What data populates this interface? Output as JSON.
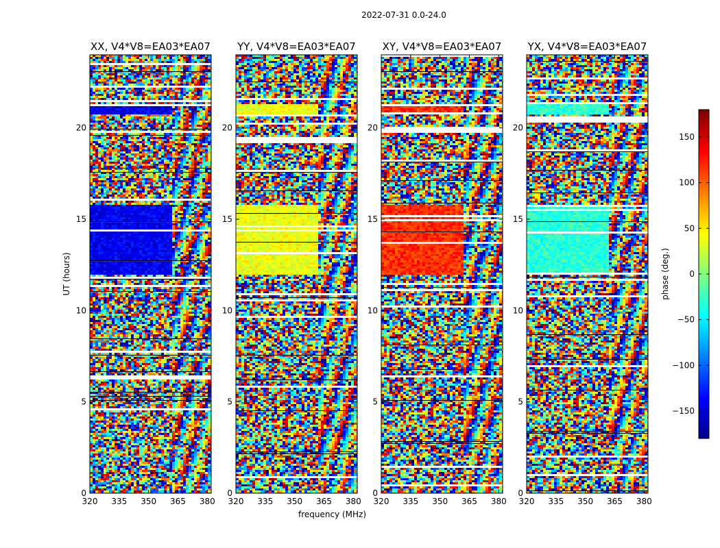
{
  "figure": {
    "suptitle": "2022-07-31 0.0-24.0"
  },
  "chart_data": [
    {
      "type": "heatmap",
      "title": "XX, V4*V8=EA03*EA07",
      "ylabel": "UT (hours)",
      "xlabel": "",
      "xlim": [
        320,
        382
      ],
      "ylim": [
        0,
        24
      ],
      "xticks": [
        320,
        335,
        350,
        365,
        380
      ],
      "yticks": [
        0,
        5,
        10,
        15,
        20
      ],
      "value_label": "phase (deg.)",
      "bias": -140
    },
    {
      "type": "heatmap",
      "title": "YY, V4*V8=EA03*EA07",
      "ylabel": "",
      "xlabel": "frequency (MHz)",
      "xlim": [
        320,
        382
      ],
      "ylim": [
        0,
        24
      ],
      "xticks": [
        320,
        335,
        350,
        365,
        380
      ],
      "yticks": [
        0,
        5,
        10,
        15,
        20
      ],
      "value_label": "phase (deg.)",
      "bias": 40
    },
    {
      "type": "heatmap",
      "title": "XY, V4*V8=EA03*EA07",
      "ylabel": "",
      "xlabel": "",
      "xlim": [
        320,
        382
      ],
      "ylim": [
        0,
        24
      ],
      "xticks": [
        320,
        335,
        350,
        365,
        380
      ],
      "yticks": [
        0,
        5,
        10,
        15,
        20
      ],
      "value_label": "phase (deg.)",
      "bias": 120
    },
    {
      "type": "heatmap",
      "title": "YX, V4*V8=EA03*EA07",
      "ylabel": "",
      "xlabel": "",
      "xlim": [
        320,
        382
      ],
      "ylim": [
        0,
        24
      ],
      "xticks": [
        320,
        335,
        350,
        365,
        380
      ],
      "yticks": [
        0,
        5,
        10,
        15,
        20
      ],
      "value_label": "phase (deg.)",
      "bias": -30
    }
  ],
  "colorbar": {
    "label": "phase (deg.)",
    "range": [
      -180,
      180
    ],
    "ticks": [
      -150,
      -100,
      -50,
      0,
      50,
      100,
      150
    ],
    "tick_labels": [
      "−150",
      "−100",
      "−50",
      "0",
      "50",
      "100",
      "150"
    ],
    "colormap": "jet"
  }
}
